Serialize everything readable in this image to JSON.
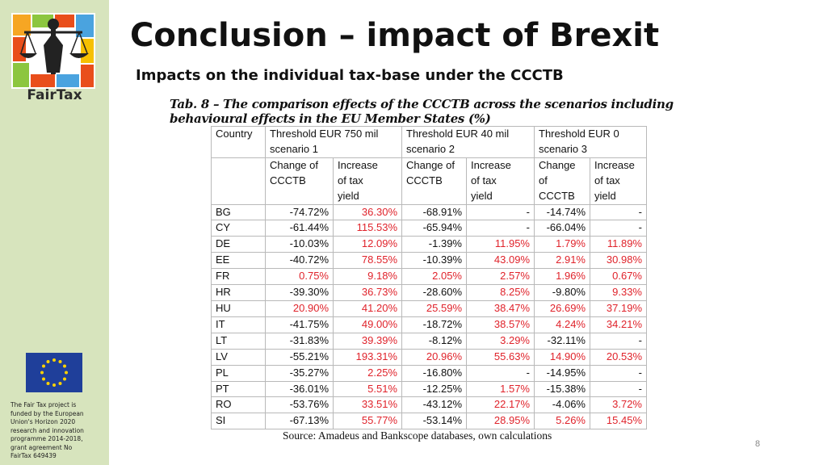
{
  "sidebar": {
    "logo_text": "FairTax",
    "funding_lines": [
      "The Fair Tax project is",
      "funded by the European",
      "Union's Horizon 2020",
      "research and innovation",
      "programme 2014-2018,",
      "grant agreement No",
      "FairTax 649439"
    ]
  },
  "slide": {
    "title": "Conclusion – impact of Brexit",
    "subtitle": "Impacts on the individual tax-base under the CCCTB",
    "table_caption_line1": "Tab. 8 – The comparison effects of the CCCTB across the scenarios including",
    "table_caption_line2": "behavioural effects in the EU Member States (%)",
    "source": "Source:  Amadeus and Bankscope databases, own calculations",
    "page_number": "8"
  },
  "table": {
    "country_header": "Country",
    "scenario_headers": [
      {
        "line1": "Threshold EUR 750  mil",
        "line2": "scenario 1"
      },
      {
        "line1": "Threshold EUR 40  mil",
        "line2": "scenario 2"
      },
      {
        "line1": "Threshold EUR 0",
        "line2": "scenario 3"
      }
    ],
    "sub_headers": [
      {
        "l1": "Change of",
        "l2": "CCCTB",
        "l3": ""
      },
      {
        "l1": "Increase",
        "l2": "of tax",
        "l3": "yield"
      },
      {
        "l1": "Change of",
        "l2": "CCCTB",
        "l3": ""
      },
      {
        "l1": "Increase",
        "l2": "of tax",
        "l3": "yield"
      },
      {
        "l1": "Change",
        "l2": "of",
        "l3": "CCCTB"
      },
      {
        "l1": "Increase",
        "l2": "of tax",
        "l3": "yield"
      }
    ],
    "rows": [
      {
        "country": "BG",
        "values": [
          "-74.72%",
          "36.30%",
          "-68.91%",
          "-",
          "-14.74%",
          "-"
        ]
      },
      {
        "country": "CY",
        "values": [
          "-61.44%",
          "115.53%",
          "-65.94%",
          "-",
          "-66.04%",
          "-"
        ]
      },
      {
        "country": "DE",
        "values": [
          "-10.03%",
          "12.09%",
          "-1.39%",
          "11.95%",
          "1.79%",
          "11.89%"
        ]
      },
      {
        "country": "EE",
        "values": [
          "-40.72%",
          "78.55%",
          "-10.39%",
          "43.09%",
          "2.91%",
          "30.98%"
        ]
      },
      {
        "country": "FR",
        "values": [
          "0.75%",
          "9.18%",
          "2.05%",
          "2.57%",
          "1.96%",
          "0.67%"
        ]
      },
      {
        "country": "HR",
        "values": [
          "-39.30%",
          "36.73%",
          "-28.60%",
          "8.25%",
          "-9.80%",
          "9.33%"
        ]
      },
      {
        "country": "HU",
        "values": [
          "20.90%",
          "41.20%",
          "25.59%",
          "38.47%",
          "26.69%",
          "37.19%"
        ]
      },
      {
        "country": "IT",
        "values": [
          "-41.75%",
          "49.00%",
          "-18.72%",
          "38.57%",
          "4.24%",
          "34.21%"
        ]
      },
      {
        "country": "LT",
        "values": [
          "-31.83%",
          "39.39%",
          "-8.12%",
          "3.29%",
          "-32.11%",
          "-"
        ]
      },
      {
        "country": "LV",
        "values": [
          "-55.21%",
          "193.31%",
          "20.96%",
          "55.63%",
          "14.90%",
          "20.53%"
        ]
      },
      {
        "country": "PL",
        "values": [
          "-35.27%",
          "2.25%",
          "-16.80%",
          "-",
          "-14.95%",
          "-"
        ]
      },
      {
        "country": "PT",
        "values": [
          "-36.01%",
          "5.51%",
          "-12.25%",
          "1.57%",
          "-15.38%",
          "-"
        ]
      },
      {
        "country": "RO",
        "values": [
          "-53.76%",
          "33.51%",
          "-43.12%",
          "22.17%",
          "-4.06%",
          "3.72%"
        ]
      },
      {
        "country": "SI",
        "values": [
          "-67.13%",
          "55.77%",
          "-53.14%",
          "28.95%",
          "5.26%",
          "15.45%"
        ]
      }
    ]
  },
  "colors": {
    "sidebar_bg": "#d7e4bd",
    "positive_value": "#e0232b",
    "eu_blue": "#1f3f9a",
    "eu_gold": "#ffd200"
  }
}
